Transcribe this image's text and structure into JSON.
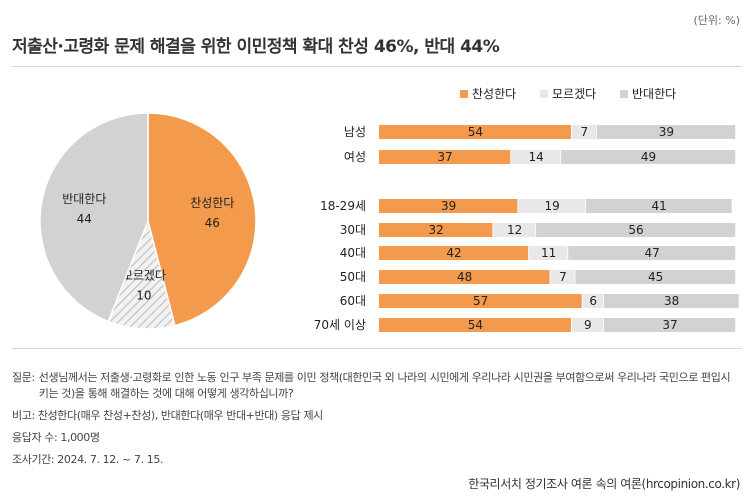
{
  "unit": "(단위: %)",
  "title": "저출산·고령화 문제 해결을 위한 이민정책 확대 찬성 46%, 반대 44%",
  "chart_data": [
    {
      "type": "pie",
      "labels": [
        "찬성한다",
        "모르겠다",
        "반대한다"
      ],
      "values": [
        46,
        10,
        44
      ],
      "colors": [
        "#f39a4c",
        "#e8e8e8",
        "#d2d2d2"
      ],
      "patterns": [
        "solid",
        "hatch",
        "solid"
      ]
    },
    {
      "type": "bar",
      "orientation": "horizontal",
      "stacked": true,
      "legend": [
        "찬성한다",
        "모르겠다",
        "반대한다"
      ],
      "legend_position": "top",
      "colors": [
        "#f39a4c",
        "#e8e8e8",
        "#d2d2d2"
      ],
      "groups": [
        {
          "categories": [
            "남성",
            "여성"
          ]
        },
        {
          "categories": [
            "18-29세",
            "30대",
            "40대",
            "50대",
            "60대",
            "70세 이상"
          ]
        }
      ],
      "categories": [
        "남성",
        "여성",
        "18-29세",
        "30대",
        "40대",
        "50대",
        "60대",
        "70세 이상"
      ],
      "series": [
        {
          "name": "찬성한다",
          "values": [
            54,
            37,
            39,
            32,
            42,
            48,
            57,
            54
          ]
        },
        {
          "name": "모르겠다",
          "values": [
            7,
            14,
            19,
            12,
            11,
            7,
            6,
            9
          ]
        },
        {
          "name": "반대한다",
          "values": [
            39,
            49,
            41,
            56,
            47,
            45,
            38,
            37
          ]
        }
      ],
      "xlim": [
        0,
        100
      ]
    }
  ],
  "notes": {
    "question_label": "질문:",
    "question": "선생님께서는 저출생·고령화로 인한 노동 인구 부족 문제를 이민 정책(대한민국 외 나라의 시민에게 우리나라 시민권을 부여함으로써 우리나라 국민으로 편입시키는 것)을 통해 해결하는 것에 대해 어떻게 생각하십니까?",
    "remark": "비고: 찬성한다(매우 찬성+찬성), 반대한다(매우 반대+반대) 응답 제시",
    "respondents": "응답자 수: 1,000명",
    "period": "조사기간: 2024. 7. 12. ~ 7. 15."
  },
  "footer": "한국리서치 정기조사 여론 속의 여론(hrcopinion.co.kr)"
}
